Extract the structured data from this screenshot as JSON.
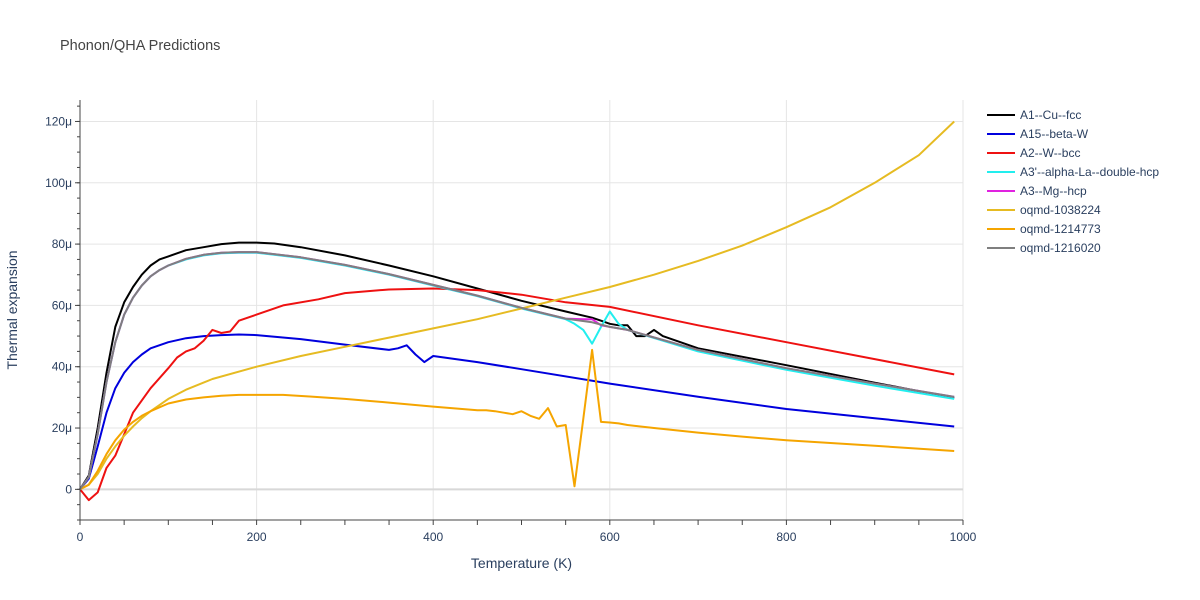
{
  "chart_data": {
    "type": "line",
    "title": "Phonon/QHA Predictions",
    "xlabel": "Temperature (K)",
    "ylabel": "Thermal expansion",
    "xlim": [
      0,
      1000
    ],
    "ylim": [
      -1e-05,
      0.000127
    ],
    "x_ticks": [
      0,
      200,
      400,
      600,
      800,
      1000
    ],
    "x_tick_labels": [
      "0",
      "200",
      "400",
      "600",
      "800",
      "1000"
    ],
    "y_ticks": [
      0,
      2e-05,
      4e-05,
      6e-05,
      8e-05,
      0.0001,
      0.00012
    ],
    "y_tick_labels": [
      "0",
      "20μ",
      "40μ",
      "60μ",
      "80μ",
      "100μ",
      "120μ"
    ],
    "grid": true,
    "legend_position": "right",
    "series": [
      {
        "name": "A1--Cu--fcc",
        "color": "#000000",
        "x": [
          0,
          10,
          20,
          30,
          40,
          50,
          60,
          70,
          80,
          90,
          100,
          110,
          120,
          140,
          160,
          180,
          200,
          220,
          250,
          300,
          350,
          400,
          450,
          500,
          550,
          580,
          590,
          600,
          610,
          620,
          630,
          640,
          650,
          660,
          700,
          800,
          900,
          990
        ],
        "y": [
          0,
          4.5e-06,
          2e-05,
          3.8e-05,
          5.3e-05,
          6.1e-05,
          6.6e-05,
          7e-05,
          7.3e-05,
          7.5e-05,
          7.6e-05,
          7.7e-05,
          7.8e-05,
          7.9e-05,
          8e-05,
          8.05e-05,
          8.05e-05,
          8.02e-05,
          7.9e-05,
          7.63e-05,
          7.3e-05,
          6.95e-05,
          6.55e-05,
          6.15e-05,
          5.8e-05,
          5.6e-05,
          5.5e-05,
          5.4e-05,
          5.35e-05,
          5.35e-05,
          5e-05,
          5e-05,
          5.2e-05,
          5e-05,
          4.6e-05,
          4.05e-05,
          3.48e-05,
          2.98e-05
        ]
      },
      {
        "name": "A15--beta-W",
        "color": "#0000dd",
        "x": [
          0,
          10,
          20,
          30,
          40,
          50,
          60,
          70,
          80,
          100,
          120,
          140,
          160,
          180,
          200,
          250,
          300,
          350,
          360,
          370,
          380,
          390,
          400,
          450,
          500,
          600,
          700,
          800,
          900,
          990
        ],
        "y": [
          0,
          3.5e-06,
          1.4e-05,
          2.5e-05,
          3.3e-05,
          3.8e-05,
          4.15e-05,
          4.4e-05,
          4.6e-05,
          4.8e-05,
          4.93e-05,
          5e-05,
          5.03e-05,
          5.05e-05,
          5.03e-05,
          4.9e-05,
          4.72e-05,
          4.55e-05,
          4.6e-05,
          4.7e-05,
          4.4e-05,
          4.15e-05,
          4.35e-05,
          4.15e-05,
          3.92e-05,
          3.45e-05,
          3.02e-05,
          2.62e-05,
          2.32e-05,
          2.05e-05
        ]
      },
      {
        "name": "A2--W--bcc",
        "color": "#ee1111",
        "x": [
          0,
          10,
          20,
          30,
          40,
          50,
          60,
          80,
          100,
          110,
          120,
          130,
          140,
          150,
          160,
          170,
          180,
          200,
          230,
          270,
          300,
          320,
          350,
          400,
          450,
          500,
          550,
          600,
          700,
          800,
          900,
          990
        ],
        "y": [
          0,
          -3.5e-06,
          -1e-06,
          7e-06,
          1.1e-05,
          1.8e-05,
          2.5e-05,
          3.3e-05,
          3.95e-05,
          4.3e-05,
          4.5e-05,
          4.6e-05,
          4.85e-05,
          5.2e-05,
          5.1e-05,
          5.15e-05,
          5.5e-05,
          5.7e-05,
          6e-05,
          6.2e-05,
          6.4e-05,
          6.45e-05,
          6.52e-05,
          6.55e-05,
          6.5e-05,
          6.35e-05,
          6.1e-05,
          5.95e-05,
          5.35e-05,
          4.8e-05,
          4.25e-05,
          3.75e-05
        ]
      },
      {
        "name": "A3'--alpha-La--double-hcp",
        "color": "#22eeee",
        "x": [
          0,
          10,
          20,
          30,
          40,
          50,
          60,
          70,
          80,
          90,
          100,
          120,
          140,
          160,
          180,
          200,
          250,
          300,
          350,
          400,
          450,
          500,
          550,
          560,
          570,
          580,
          590,
          600,
          610,
          620,
          700,
          800,
          900,
          990
        ],
        "y": [
          0,
          4e-06,
          1.8e-05,
          3.5e-05,
          4.8e-05,
          5.7e-05,
          6.25e-05,
          6.65e-05,
          6.95e-05,
          7.15e-05,
          7.3e-05,
          7.5e-05,
          7.63e-05,
          7.7e-05,
          7.72e-05,
          7.72e-05,
          7.55e-05,
          7.3e-05,
          7e-05,
          6.65e-05,
          6.3e-05,
          5.9e-05,
          5.55e-05,
          5.4e-05,
          5.2e-05,
          4.75e-05,
          5.3e-05,
          5.8e-05,
          5.4e-05,
          5.2e-05,
          4.5e-05,
          3.9e-05,
          3.38e-05,
          2.95e-05
        ]
      },
      {
        "name": "A3--Mg--hcp",
        "color": "#e022e0",
        "x": [
          0,
          10,
          20,
          30,
          40,
          50,
          60,
          70,
          80,
          90,
          100,
          120,
          140,
          160,
          180,
          200,
          250,
          300,
          350,
          400,
          450,
          500,
          550,
          570,
          580,
          590,
          600,
          620,
          700,
          800,
          900,
          990
        ],
        "y": [
          0,
          4e-06,
          1.8e-05,
          3.5e-05,
          4.8e-05,
          5.7e-05,
          6.25e-05,
          6.65e-05,
          6.95e-05,
          7.15e-05,
          7.3e-05,
          7.52e-05,
          7.65e-05,
          7.72e-05,
          7.74e-05,
          7.74e-05,
          7.57e-05,
          7.32e-05,
          7.02e-05,
          6.67e-05,
          6.32e-05,
          5.92e-05,
          5.57e-05,
          5.55e-05,
          5.55e-05,
          5.35e-05,
          5.3e-05,
          5.2e-05,
          4.55e-05,
          3.95e-05,
          3.45e-05,
          3.02e-05
        ]
      },
      {
        "name": "oqmd-1038224",
        "color": "#e6bb22",
        "x": [
          0,
          10,
          20,
          30,
          40,
          50,
          60,
          70,
          80,
          100,
          120,
          150,
          200,
          250,
          300,
          350,
          400,
          450,
          500,
          550,
          600,
          650,
          700,
          750,
          800,
          850,
          900,
          950,
          990
        ],
        "y": [
          0,
          1.5e-06,
          5e-06,
          1e-05,
          1.4e-05,
          1.75e-05,
          2.05e-05,
          2.32e-05,
          2.55e-05,
          2.95e-05,
          3.25e-05,
          3.6e-05,
          4e-05,
          4.35e-05,
          4.65e-05,
          4.95e-05,
          5.25e-05,
          5.55e-05,
          5.9e-05,
          6.25e-05,
          6.6e-05,
          7e-05,
          7.45e-05,
          7.95e-05,
          8.55e-05,
          9.2e-05,
          0.0001,
          0.000109,
          0.00012
        ]
      },
      {
        "name": "oqmd-1214773",
        "color": "#f5a500",
        "x": [
          0,
          10,
          20,
          30,
          40,
          50,
          60,
          70,
          80,
          100,
          120,
          140,
          160,
          180,
          200,
          230,
          260,
          300,
          350,
          400,
          450,
          460,
          470,
          480,
          490,
          500,
          510,
          520,
          530,
          540,
          550,
          560,
          570,
          580,
          590,
          600,
          610,
          620,
          650,
          700,
          750,
          800,
          900,
          990
        ],
        "y": [
          0,
          1.5e-06,
          6e-06,
          1.15e-05,
          1.6e-05,
          1.95e-05,
          2.2e-05,
          2.4e-05,
          2.55e-05,
          2.8e-05,
          2.93e-05,
          3e-05,
          3.05e-05,
          3.08e-05,
          3.08e-05,
          3.08e-05,
          3.03e-05,
          2.95e-05,
          2.83e-05,
          2.7e-05,
          2.58e-05,
          2.58e-05,
          2.55e-05,
          2.5e-05,
          2.45e-05,
          2.55e-05,
          2.4e-05,
          2.3e-05,
          2.65e-05,
          2.05e-05,
          2.1e-05,
          1e-06,
          2.3e-05,
          4.55e-05,
          2.2e-05,
          2.18e-05,
          2.15e-05,
          2.1e-05,
          2e-05,
          1.85e-05,
          1.72e-05,
          1.6e-05,
          1.42e-05,
          1.25e-05
        ]
      },
      {
        "name": "oqmd-1216020",
        "color": "#7f7f7f",
        "x": [
          0,
          10,
          20,
          30,
          40,
          50,
          60,
          70,
          80,
          90,
          100,
          120,
          140,
          160,
          180,
          200,
          250,
          300,
          350,
          400,
          450,
          500,
          550,
          580,
          600,
          620,
          700,
          800,
          900,
          990
        ],
        "y": [
          0,
          4e-06,
          1.8e-05,
          3.5e-05,
          4.8e-05,
          5.7e-05,
          6.25e-05,
          6.65e-05,
          6.95e-05,
          7.15e-05,
          7.3e-05,
          7.52e-05,
          7.65e-05,
          7.72e-05,
          7.74e-05,
          7.74e-05,
          7.57e-05,
          7.32e-05,
          7.02e-05,
          6.67e-05,
          6.32e-05,
          5.92e-05,
          5.57e-05,
          5.45e-05,
          5.3e-05,
          5.2e-05,
          4.55e-05,
          3.95e-05,
          3.45e-05,
          3.02e-05
        ]
      }
    ]
  }
}
